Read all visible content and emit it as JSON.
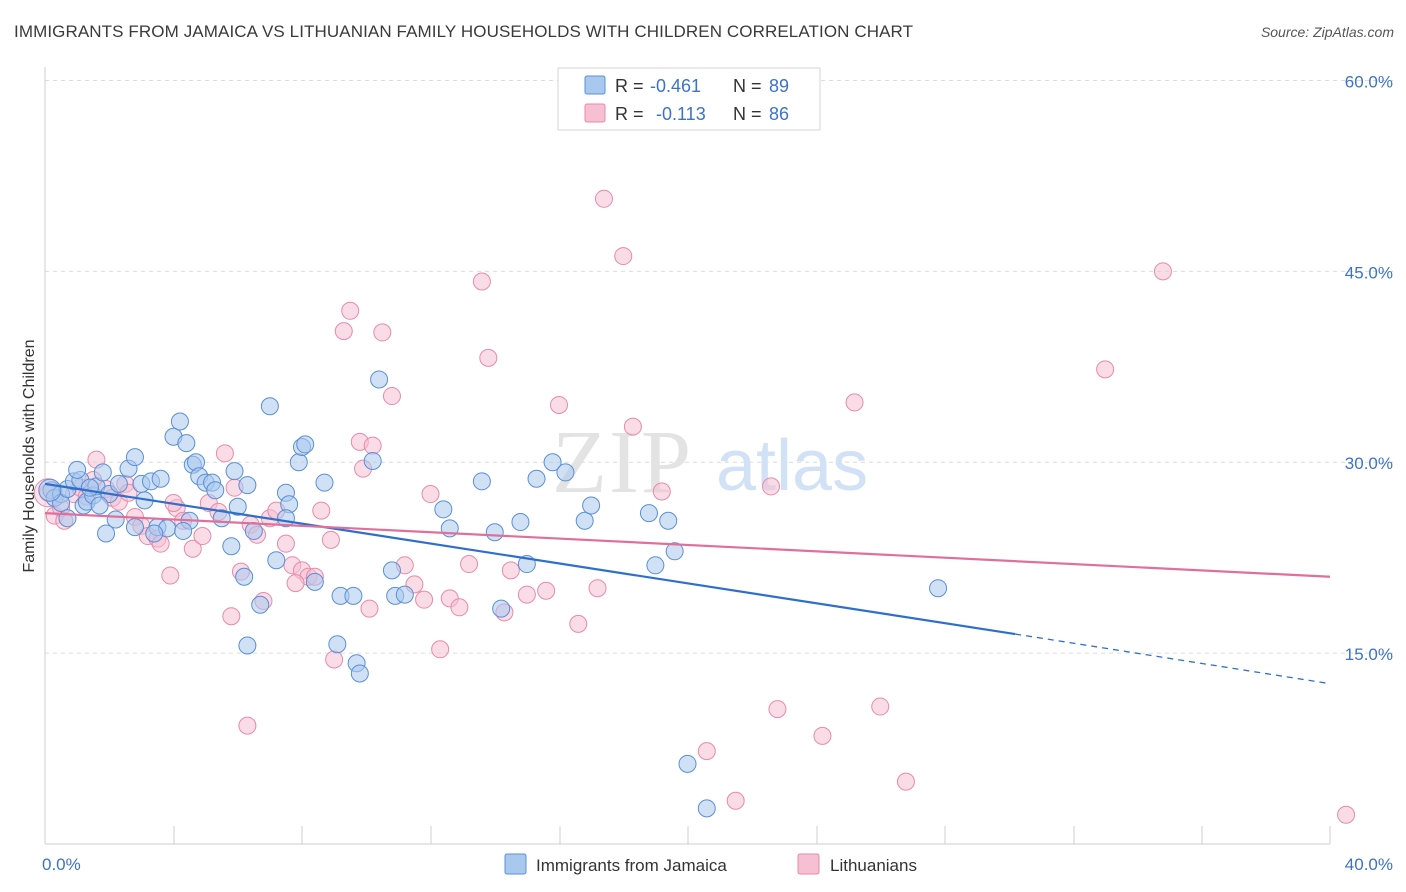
{
  "title": "IMMIGRANTS FROM JAMAICA VS LITHUANIAN FAMILY HOUSEHOLDS WITH CHILDREN CORRELATION CHART",
  "source": "Source: ZipAtlas.com",
  "watermark": {
    "zip": "ZIP",
    "atlas": "atlas"
  },
  "legend": {
    "rows": [
      {
        "r_label": "R =",
        "r_value": "-0.461",
        "n_label": "N =",
        "n_value": "89"
      },
      {
        "r_label": "R =",
        "r_value": "-0.113",
        "n_label": "N =",
        "n_value": "86"
      }
    ]
  },
  "colors": {
    "blue_fill": "#a9c8ee",
    "blue_stroke": "#5b8fd6",
    "blue_line": "#2e6fce",
    "pink_fill": "#f6bfd2",
    "pink_stroke": "#e98aab",
    "pink_line": "#e0709a",
    "value_text": "#3b73c9",
    "grid": "#dcdcdc"
  },
  "chart_data": {
    "type": "scatter",
    "xlabel": "",
    "ylabel": "Family Households with Children",
    "xlim": [
      0,
      40
    ],
    "ylim": [
      0,
      63
    ],
    "x_tick_labels": [
      "0.0%",
      "40.0%"
    ],
    "y_tick_labels": [
      "60.0%",
      "45.0%",
      "30.0%",
      "15.0%"
    ],
    "y_tick_values": [
      60,
      45,
      30,
      15
    ],
    "grid": true,
    "legend_position": "top-center",
    "series": [
      {
        "name": "Immigrants from Jamaica",
        "color": "blue",
        "trend": {
          "x0": 0,
          "y0": 28.3,
          "x1": 30.2,
          "y1": 16.5,
          "dash_to_x": 40,
          "dash_to_y": 12.6
        },
        "points": [
          [
            0.2,
            27.8
          ],
          [
            0.3,
            27.2
          ],
          [
            0.5,
            27.5
          ],
          [
            0.5,
            26.8
          ],
          [
            0.7,
            27.9
          ],
          [
            0.9,
            28.5
          ],
          [
            1.1,
            28.6
          ],
          [
            1.0,
            29.4
          ],
          [
            1.2,
            26.6
          ],
          [
            1.3,
            26.9
          ],
          [
            1.5,
            27.4
          ],
          [
            1.6,
            28.1
          ],
          [
            1.8,
            29.2
          ],
          [
            1.9,
            24.4
          ],
          [
            2.0,
            27.5
          ],
          [
            2.2,
            25.5
          ],
          [
            2.3,
            28.3
          ],
          [
            2.6,
            29.5
          ],
          [
            2.8,
            30.4
          ],
          [
            3.0,
            28.3
          ],
          [
            3.1,
            27.0
          ],
          [
            3.3,
            28.5
          ],
          [
            3.5,
            24.9
          ],
          [
            3.6,
            28.7
          ],
          [
            3.8,
            24.8
          ],
          [
            4.0,
            32.0
          ],
          [
            4.2,
            33.2
          ],
          [
            4.4,
            31.5
          ],
          [
            4.5,
            25.4
          ],
          [
            4.6,
            29.8
          ],
          [
            4.7,
            30.0
          ],
          [
            4.8,
            28.9
          ],
          [
            5.0,
            28.4
          ],
          [
            5.2,
            28.4
          ],
          [
            5.3,
            27.8
          ],
          [
            5.5,
            25.6
          ],
          [
            5.8,
            23.4
          ],
          [
            5.9,
            29.3
          ],
          [
            6.0,
            26.5
          ],
          [
            6.2,
            21.0
          ],
          [
            6.3,
            28.2
          ],
          [
            6.5,
            24.6
          ],
          [
            6.7,
            18.8
          ],
          [
            7.0,
            34.4
          ],
          [
            7.2,
            22.3
          ],
          [
            7.5,
            27.6
          ],
          [
            7.6,
            26.7
          ],
          [
            7.9,
            30.0
          ],
          [
            8.0,
            31.2
          ],
          [
            8.1,
            31.4
          ],
          [
            8.4,
            20.6
          ],
          [
            8.7,
            28.4
          ],
          [
            9.2,
            19.5
          ],
          [
            9.6,
            19.5
          ],
          [
            9.7,
            14.2
          ],
          [
            9.8,
            13.4
          ],
          [
            10.2,
            30.1
          ],
          [
            10.4,
            36.5
          ],
          [
            10.8,
            21.5
          ],
          [
            10.9,
            19.5
          ],
          [
            11.2,
            19.6
          ],
          [
            12.4,
            26.3
          ],
          [
            12.6,
            24.8
          ],
          [
            13.6,
            28.5
          ],
          [
            14.0,
            24.5
          ],
          [
            14.2,
            18.5
          ],
          [
            14.8,
            25.3
          ],
          [
            15.0,
            22.0
          ],
          [
            15.3,
            28.7
          ],
          [
            15.8,
            30.0
          ],
          [
            16.2,
            29.2
          ],
          [
            16.8,
            25.4
          ],
          [
            17.0,
            26.6
          ],
          [
            18.8,
            26.0
          ],
          [
            19.0,
            21.9
          ],
          [
            19.4,
            25.4
          ],
          [
            19.6,
            23.0
          ],
          [
            20.0,
            6.3
          ],
          [
            20.6,
            2.8
          ],
          [
            27.8,
            20.1
          ],
          [
            6.3,
            15.6
          ],
          [
            9.1,
            15.7
          ],
          [
            4.3,
            24.6
          ],
          [
            3.4,
            24.4
          ],
          [
            7.5,
            25.6
          ],
          [
            2.8,
            24.9
          ],
          [
            1.4,
            28.0
          ],
          [
            0.7,
            25.6
          ],
          [
            1.7,
            26.6
          ]
        ]
      },
      {
        "name": "Lithuanians",
        "color": "pink",
        "trend": {
          "x0": 0,
          "y0": 26.0,
          "x1": 40,
          "y1": 21.0
        },
        "points": [
          [
            0.1,
            27.6
          ],
          [
            0.3,
            25.8
          ],
          [
            0.5,
            26.4
          ],
          [
            0.6,
            25.4
          ],
          [
            0.9,
            27.5
          ],
          [
            1.1,
            28.0
          ],
          [
            1.3,
            27.3
          ],
          [
            1.5,
            28.6
          ],
          [
            1.6,
            30.2
          ],
          [
            1.9,
            27.9
          ],
          [
            2.1,
            27.2
          ],
          [
            2.3,
            26.9
          ],
          [
            2.5,
            28.3
          ],
          [
            2.8,
            25.7
          ],
          [
            3.0,
            25.0
          ],
          [
            3.2,
            24.2
          ],
          [
            3.5,
            24.0
          ],
          [
            3.6,
            23.6
          ],
          [
            3.9,
            21.1
          ],
          [
            4.1,
            26.4
          ],
          [
            4.3,
            25.4
          ],
          [
            4.6,
            23.2
          ],
          [
            4.9,
            24.2
          ],
          [
            5.1,
            26.8
          ],
          [
            5.4,
            26.1
          ],
          [
            5.6,
            30.7
          ],
          [
            5.9,
            28.0
          ],
          [
            6.1,
            21.4
          ],
          [
            6.4,
            25.1
          ],
          [
            6.6,
            24.3
          ],
          [
            6.8,
            19.1
          ],
          [
            7.0,
            25.6
          ],
          [
            7.2,
            26.2
          ],
          [
            7.5,
            23.6
          ],
          [
            7.7,
            21.9
          ],
          [
            8.0,
            21.5
          ],
          [
            8.2,
            21.0
          ],
          [
            8.6,
            26.2
          ],
          [
            8.9,
            23.9
          ],
          [
            9.0,
            14.5
          ],
          [
            9.3,
            40.3
          ],
          [
            9.5,
            41.9
          ],
          [
            9.8,
            31.6
          ],
          [
            9.9,
            29.5
          ],
          [
            10.2,
            31.3
          ],
          [
            10.5,
            40.2
          ],
          [
            10.8,
            35.2
          ],
          [
            11.2,
            21.9
          ],
          [
            11.5,
            20.4
          ],
          [
            11.8,
            19.2
          ],
          [
            12.3,
            15.3
          ],
          [
            12.6,
            19.3
          ],
          [
            12.9,
            18.6
          ],
          [
            13.2,
            22.0
          ],
          [
            13.6,
            44.2
          ],
          [
            13.8,
            38.2
          ],
          [
            14.3,
            18.2
          ],
          [
            14.5,
            21.5
          ],
          [
            15.0,
            19.6
          ],
          [
            15.6,
            19.9
          ],
          [
            16.0,
            34.5
          ],
          [
            16.6,
            17.3
          ],
          [
            17.2,
            20.1
          ],
          [
            17.4,
            50.7
          ],
          [
            18.0,
            46.2
          ],
          [
            18.3,
            32.8
          ],
          [
            19.2,
            27.7
          ],
          [
            20.6,
            7.3
          ],
          [
            21.5,
            3.4
          ],
          [
            22.6,
            28.1
          ],
          [
            22.8,
            10.6
          ],
          [
            24.2,
            8.5
          ],
          [
            25.2,
            34.7
          ],
          [
            26.0,
            10.8
          ],
          [
            26.8,
            4.9
          ],
          [
            33.0,
            37.3
          ],
          [
            34.8,
            45.0
          ],
          [
            40.5,
            2.3
          ],
          [
            6.3,
            9.3
          ],
          [
            5.8,
            17.9
          ],
          [
            8.4,
            21.0
          ],
          [
            10.1,
            18.5
          ],
          [
            12.0,
            27.5
          ],
          [
            2.6,
            27.6
          ],
          [
            4.0,
            26.8
          ],
          [
            7.8,
            20.5
          ]
        ]
      }
    ]
  }
}
